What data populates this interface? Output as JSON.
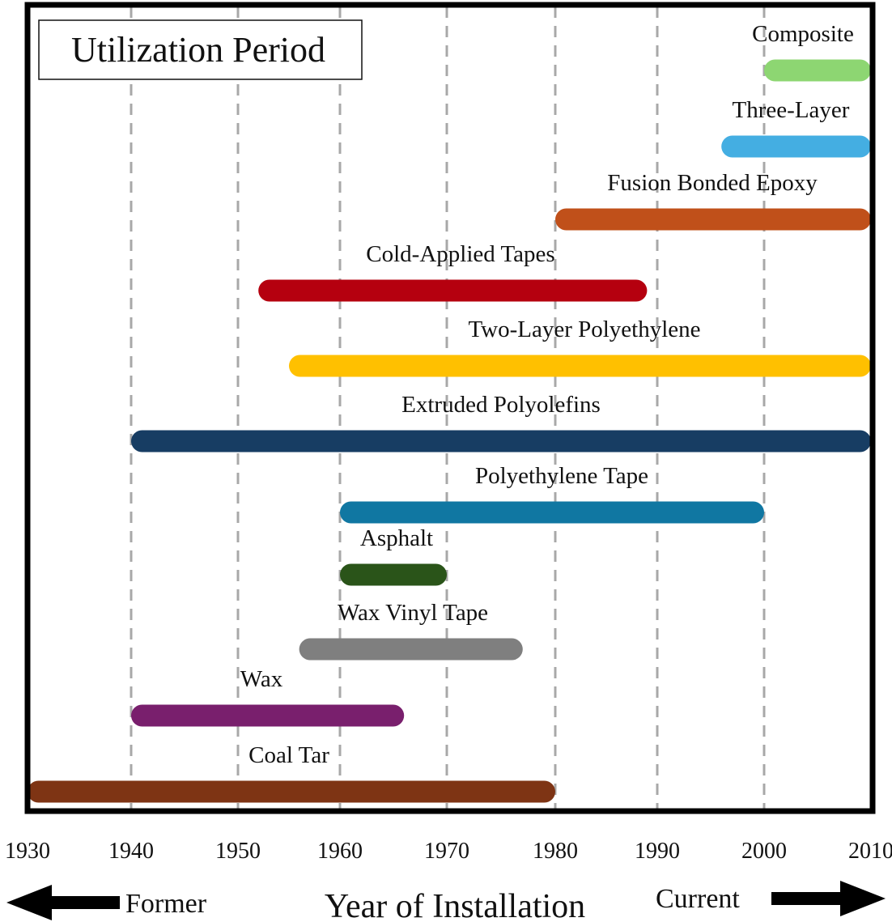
{
  "chart_data": {
    "type": "bar",
    "orientation": "horizontal-range",
    "title": "Utilization Period",
    "xlabel": "Year of Installation",
    "ylabel": "",
    "xlim": [
      1930,
      2010
    ],
    "x_ticks": [
      1930,
      1940,
      1950,
      1960,
      1970,
      1980,
      1990,
      2000,
      2010
    ],
    "x_tick_labels": [
      "1930",
      "1940",
      "1950",
      "1960",
      "1970",
      "1980",
      "1990",
      "2000",
      "2010"
    ],
    "grid": "vertical dashed",
    "direction_labels": {
      "left": "Former",
      "right": "Current"
    },
    "series": [
      {
        "name": "Composite",
        "start": 2000,
        "end": 2010,
        "color": "#8dd672"
      },
      {
        "name": "Three-Layer",
        "start": 1996,
        "end": 2010,
        "color": "#44aee2"
      },
      {
        "name": "Fusion Bonded Epoxy",
        "start": 1980,
        "end": 2010,
        "color": "#c0501a"
      },
      {
        "name": "Cold-Applied Tapes",
        "start": 1952,
        "end": 1989,
        "color": "#b5000f"
      },
      {
        "name": "Two-Layer Polyethylene",
        "start": 1955,
        "end": 2010,
        "color": "#ffc000"
      },
      {
        "name": "Extruded Polyolefins",
        "start": 1940,
        "end": 2010,
        "color": "#173d63"
      },
      {
        "name": "Polyethylene Tape",
        "start": 1960,
        "end": 2000,
        "color": "#1077a2"
      },
      {
        "name": "Asphalt",
        "start": 1960,
        "end": 1970,
        "color": "#2a5419"
      },
      {
        "name": "Wax Vinyl Tape",
        "start": 1956,
        "end": 1977,
        "color": "#7f7f7f"
      },
      {
        "name": "Wax",
        "start": 1940,
        "end": 1966,
        "color": "#791f6d"
      },
      {
        "name": "Coal Tar",
        "start": 1930,
        "end": 1980,
        "color": "#7e3414"
      }
    ]
  }
}
